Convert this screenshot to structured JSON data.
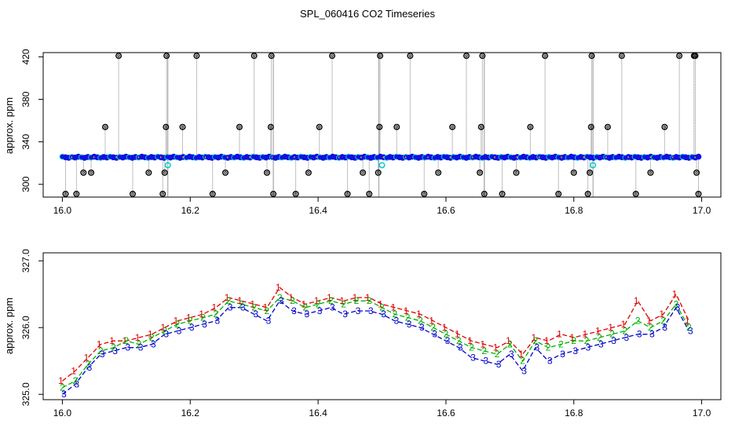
{
  "title": "SPL_060416  CO2 Timeseries",
  "colors": {
    "series1": "#e00000",
    "series2": "#00b000",
    "series3": "#0000cc",
    "spike_outline": "#000000",
    "spike_line": "#808080",
    "baseline_fill": "#1010e0",
    "baseline_alt": "#00cccc",
    "baseline_marker": "#e8a000"
  },
  "chart_data": [
    {
      "type": "scatter",
      "name": "top-panel",
      "xlabel": "",
      "ylabel": "approx. ppm",
      "xlim": [
        15.97,
        17.03
      ],
      "ylim": [
        288,
        424
      ],
      "xticks": [
        16.0,
        16.2,
        16.4,
        16.6,
        16.8,
        17.0
      ],
      "xtick_labels": [
        "16.0",
        "16.2",
        "16.4",
        "16.6",
        "16.8",
        "17.0"
      ],
      "yticks": [
        300,
        340,
        380,
        420
      ],
      "ytick_labels": [
        "300",
        "340",
        "380",
        "420"
      ],
      "baseline": {
        "x_start": 16.0,
        "x_end": 16.995,
        "value": 325.5,
        "gaps": [
          16.165,
          16.33,
          16.495,
          16.66,
          16.83
        ]
      },
      "cyan_points": [
        [
          16.165,
          318
        ],
        [
          16.5,
          318
        ],
        [
          16.83,
          318
        ]
      ],
      "spikes": [
        [
          16.005,
          291
        ],
        [
          16.022,
          291
        ],
        [
          16.033,
          311
        ],
        [
          16.045,
          311
        ],
        [
          16.067,
          354
        ],
        [
          16.088,
          421
        ],
        [
          16.11,
          291
        ],
        [
          16.135,
          311
        ],
        [
          16.157,
          291
        ],
        [
          16.16,
          311
        ],
        [
          16.162,
          354
        ],
        [
          16.163,
          421
        ],
        [
          16.188,
          354
        ],
        [
          16.21,
          421
        ],
        [
          16.235,
          291
        ],
        [
          16.255,
          311
        ],
        [
          16.277,
          354
        ],
        [
          16.3,
          421
        ],
        [
          16.32,
          311
        ],
        [
          16.326,
          354
        ],
        [
          16.327,
          421
        ],
        [
          16.33,
          291
        ],
        [
          16.365,
          291
        ],
        [
          16.385,
          311
        ],
        [
          16.402,
          354
        ],
        [
          16.422,
          421
        ],
        [
          16.446,
          291
        ],
        [
          16.47,
          311
        ],
        [
          16.48,
          291
        ],
        [
          16.494,
          311
        ],
        [
          16.496,
          354
        ],
        [
          16.497,
          421
        ],
        [
          16.523,
          354
        ],
        [
          16.544,
          421
        ],
        [
          16.566,
          291
        ],
        [
          16.588,
          311
        ],
        [
          16.61,
          354
        ],
        [
          16.632,
          421
        ],
        [
          16.653,
          311
        ],
        [
          16.655,
          354
        ],
        [
          16.657,
          421
        ],
        [
          16.66,
          291
        ],
        [
          16.688,
          291
        ],
        [
          16.71,
          311
        ],
        [
          16.732,
          354
        ],
        [
          16.755,
          421
        ],
        [
          16.776,
          291
        ],
        [
          16.8,
          311
        ],
        [
          16.822,
          291
        ],
        [
          16.825,
          311
        ],
        [
          16.827,
          354
        ],
        [
          16.828,
          421
        ],
        [
          16.853,
          354
        ],
        [
          16.875,
          421
        ],
        [
          16.897,
          291
        ],
        [
          16.92,
          311
        ],
        [
          16.942,
          354
        ],
        [
          16.965,
          421
        ],
        [
          16.988,
          421
        ],
        [
          16.99,
          421
        ],
        [
          16.992,
          311
        ],
        [
          16.995,
          291
        ]
      ]
    },
    {
      "type": "line",
      "name": "bottom-panel",
      "xlabel": "",
      "ylabel": "approx. ppm",
      "xlim": [
        15.97,
        17.03
      ],
      "ylim": [
        324.92,
        327.12
      ],
      "xticks": [
        16.0,
        16.2,
        16.4,
        16.6,
        16.8,
        17.0
      ],
      "xtick_labels": [
        "16.0",
        "16.2",
        "16.4",
        "16.6",
        "16.8",
        "17.0"
      ],
      "yticks": [
        325.0,
        326.0,
        327.0
      ],
      "ytick_labels": [
        "325.0",
        "326.0",
        "327.0"
      ],
      "x": [
        16.0,
        16.02,
        16.04,
        16.06,
        16.08,
        16.1,
        16.12,
        16.14,
        16.16,
        16.18,
        16.2,
        16.22,
        16.24,
        16.26,
        16.28,
        16.3,
        16.32,
        16.34,
        16.36,
        16.38,
        16.4,
        16.42,
        16.44,
        16.46,
        16.48,
        16.5,
        16.52,
        16.54,
        16.56,
        16.58,
        16.6,
        16.62,
        16.64,
        16.66,
        16.68,
        16.7,
        16.72,
        16.74,
        16.76,
        16.78,
        16.8,
        16.82,
        16.84,
        16.86,
        16.88,
        16.9,
        16.92,
        16.94,
        16.96,
        16.98
      ],
      "series": [
        {
          "name": "1",
          "values": [
            325.2,
            325.35,
            325.55,
            325.75,
            325.8,
            325.8,
            325.85,
            325.9,
            326.0,
            326.1,
            326.15,
            326.2,
            326.3,
            326.45,
            326.4,
            326.35,
            326.3,
            326.6,
            326.45,
            326.35,
            326.4,
            326.45,
            326.4,
            326.45,
            326.45,
            326.35,
            326.3,
            326.25,
            326.2,
            326.1,
            326.0,
            325.9,
            325.8,
            325.75,
            325.7,
            325.8,
            325.6,
            325.85,
            325.8,
            325.9,
            325.85,
            325.9,
            325.95,
            326.0,
            326.05,
            326.4,
            326.1,
            326.2,
            326.5,
            326.1
          ]
        },
        {
          "name": "2",
          "values": [
            325.1,
            325.2,
            325.45,
            325.65,
            325.7,
            325.8,
            325.75,
            325.85,
            325.95,
            326.05,
            326.1,
            326.15,
            326.2,
            326.4,
            326.35,
            326.3,
            326.25,
            326.45,
            326.4,
            326.3,
            326.35,
            326.4,
            326.35,
            326.4,
            326.4,
            326.3,
            326.2,
            326.15,
            326.1,
            326.0,
            325.9,
            325.8,
            325.7,
            325.65,
            325.6,
            325.75,
            325.5,
            325.8,
            325.7,
            325.75,
            325.8,
            325.8,
            325.85,
            325.9,
            325.95,
            326.1,
            326.0,
            326.1,
            326.35,
            326.0
          ]
        },
        {
          "name": "3",
          "values": [
            325.0,
            325.15,
            325.4,
            325.6,
            325.65,
            325.7,
            325.7,
            325.75,
            325.9,
            325.95,
            326.0,
            326.05,
            326.1,
            326.3,
            326.3,
            326.2,
            326.1,
            326.4,
            326.25,
            326.2,
            326.25,
            326.3,
            326.2,
            326.25,
            326.25,
            326.2,
            326.1,
            326.05,
            326.0,
            325.9,
            325.8,
            325.7,
            325.55,
            325.5,
            325.45,
            325.6,
            325.35,
            325.7,
            325.5,
            325.6,
            325.65,
            325.7,
            325.75,
            325.8,
            325.85,
            325.9,
            325.9,
            326.0,
            326.3,
            325.95
          ]
        }
      ]
    }
  ]
}
